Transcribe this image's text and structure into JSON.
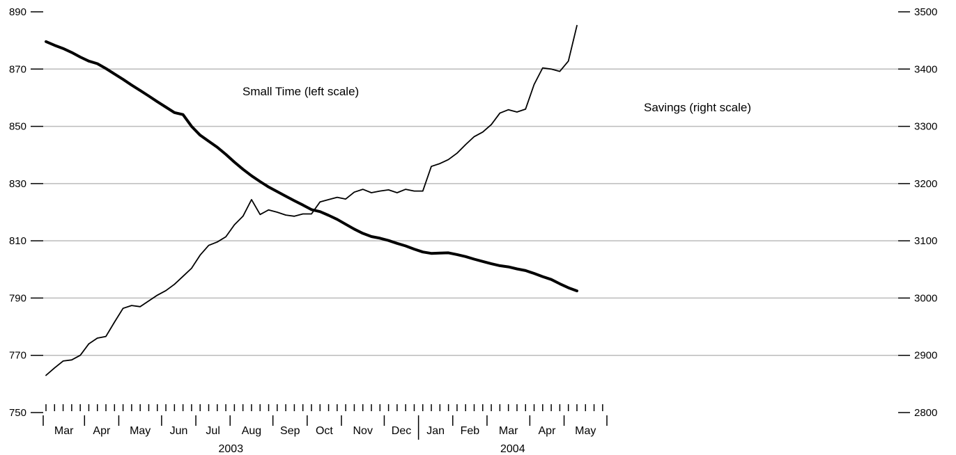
{
  "chart_data": {
    "type": "line",
    "title": "",
    "xlabel": "",
    "ylabel": "",
    "grid": true,
    "colors": {
      "series": "#000000",
      "grid": "#bbbbbb",
      "axis": "#000000"
    },
    "left_axis": {
      "ylim": [
        750,
        890
      ],
      "ticks": [
        750,
        770,
        790,
        810,
        830,
        850,
        870,
        890
      ]
    },
    "right_axis": {
      "ylim": [
        2800,
        3500
      ],
      "ticks": [
        2800,
        2900,
        3000,
        3100,
        3200,
        3300,
        3400,
        3500
      ]
    },
    "x_axis": {
      "months": [
        "Mar",
        "Apr",
        "May",
        "Jun",
        "Jul",
        "Aug",
        "Sep",
        "Oct",
        "Nov",
        "Dec",
        "Jan",
        "Feb",
        "Mar",
        "Apr",
        "May"
      ],
      "years": [
        "2003",
        "2004"
      ],
      "weeks_per_month": [
        5,
        4,
        5,
        4,
        4,
        5,
        4,
        4,
        5,
        4,
        4,
        4,
        5,
        4,
        5
      ]
    },
    "annotations": [
      {
        "text": "Small Time (left scale)",
        "series": "small_time"
      },
      {
        "text": "Savings (right scale)",
        "series": "savings"
      }
    ],
    "series": [
      {
        "key": "small_time",
        "axis": "left",
        "week_start": 0,
        "values": [
          879.6,
          878.3,
          877.2,
          875.8,
          874.2,
          872.8,
          871.9,
          870.2,
          868.3,
          866.4,
          864.4,
          862.5,
          860.6,
          858.6,
          856.7,
          854.8,
          854.1,
          850.0,
          846.9,
          844.8,
          842.7,
          840.2,
          837.5,
          835.0,
          832.7,
          830.7,
          828.8,
          827.2,
          825.6,
          824.0,
          822.5,
          820.9,
          820.2,
          818.9,
          817.5,
          815.8,
          814.1,
          812.6,
          811.5,
          810.9,
          810.1,
          809.1,
          808.2,
          807.1,
          806.1,
          805.6,
          805.7,
          805.8,
          805.2,
          804.5,
          803.6,
          802.8,
          802.0,
          801.3,
          800.9,
          800.2,
          799.6,
          798.6,
          797.5,
          796.5,
          795.0,
          793.6,
          792.5
        ]
      },
      {
        "key": "savings",
        "axis": "right",
        "week_start": 0,
        "values": [
          2865,
          2878,
          2890,
          2892,
          2900,
          2920,
          2930,
          2933,
          2958,
          2982,
          2987,
          2985,
          2995,
          3005,
          3013,
          3024,
          3038,
          3052,
          3075,
          3092,
          3098,
          3107,
          3128,
          3143,
          3172,
          3146,
          3154,
          3150,
          3145,
          3143,
          3147,
          3147,
          3168,
          3172,
          3176,
          3173,
          3185,
          3190,
          3184,
          3187,
          3189,
          3184,
          3190,
          3187,
          3187,
          3230,
          3235,
          3242,
          3253,
          3268,
          3282,
          3290,
          3303,
          3323,
          3329,
          3325,
          3330,
          3373,
          3402,
          3400,
          3396,
          3414,
          3476
        ]
      }
    ]
  }
}
